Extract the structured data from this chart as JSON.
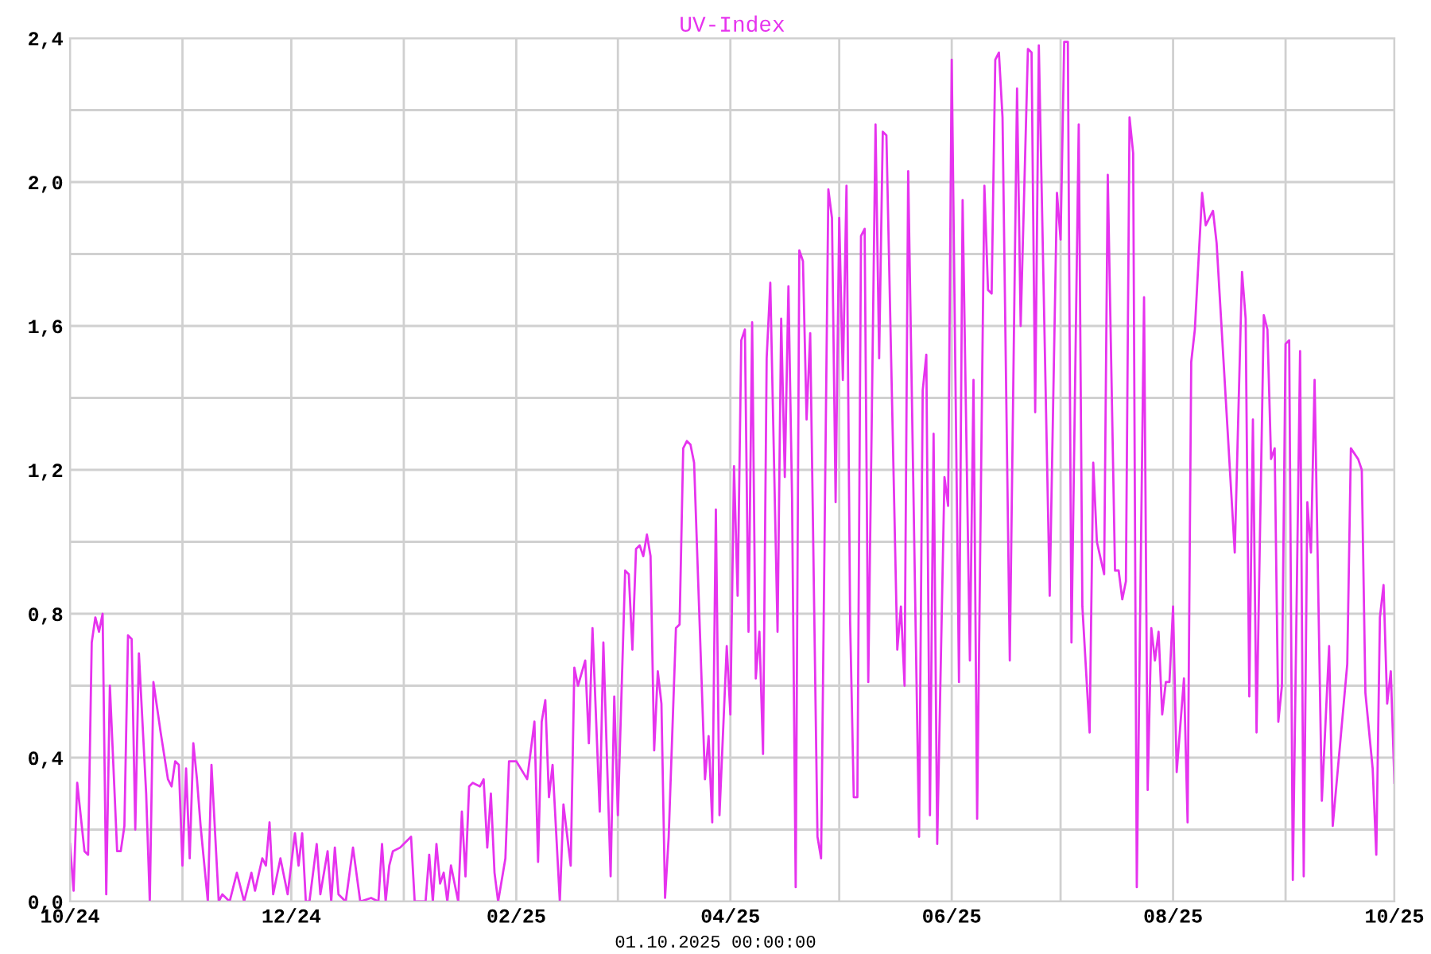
{
  "chart_data": {
    "type": "line",
    "title": "UV-Index",
    "annotations": [
      "01.10.2025 00:00:00"
    ],
    "xlim": [
      "2024-10-01",
      "2025-10-01"
    ],
    "xticks": [
      {
        "value": "2024-10-01",
        "label": "10/24"
      },
      {
        "value": "2024-11-01",
        "label": null
      },
      {
        "value": "2024-12-01",
        "label": "12/24"
      },
      {
        "value": "2025-01-01",
        "label": null
      },
      {
        "value": "2025-02-01",
        "label": "02/25"
      },
      {
        "value": "2025-03-01",
        "label": null
      },
      {
        "value": "2025-04-01",
        "label": "04/25"
      },
      {
        "value": "2025-05-01",
        "label": null
      },
      {
        "value": "2025-06-01",
        "label": "06/25"
      },
      {
        "value": "2025-07-01",
        "label": null
      },
      {
        "value": "2025-08-01",
        "label": "08/25"
      },
      {
        "value": "2025-09-01",
        "label": null
      },
      {
        "value": "2025-10-01",
        "label": "10/25"
      }
    ],
    "ylim": [
      0,
      2.4
    ],
    "yticks": [
      {
        "value": 0,
        "label": "0,0"
      },
      {
        "value": 0.2,
        "label": null
      },
      {
        "value": 0.4,
        "label": "0,4"
      },
      {
        "value": 0.6,
        "label": null
      },
      {
        "value": 0.8,
        "label": "0,8"
      },
      {
        "value": 1.0,
        "label": null
      },
      {
        "value": 1.2,
        "label": "1,2"
      },
      {
        "value": 1.4,
        "label": null
      },
      {
        "value": 1.6,
        "label": "1,6"
      },
      {
        "value": 1.8,
        "label": null
      },
      {
        "value": 2.0,
        "label": "2,0"
      },
      {
        "value": 2.2,
        "label": null
      },
      {
        "value": 2.4,
        "label": "2,4"
      }
    ],
    "grid": true,
    "marker": "none",
    "line_style": "solid",
    "series": [
      {
        "color": "#e633ee",
        "x": [
          "2024-10-01",
          "2024-10-02",
          "2024-10-03",
          "2024-10-05",
          "2024-10-06",
          "2024-10-07",
          "2024-10-08",
          "2024-10-09",
          "2024-10-10",
          "2024-10-11",
          "2024-10-12",
          "2024-10-14",
          "2024-10-15",
          "2024-10-16",
          "2024-10-17",
          "2024-10-18",
          "2024-10-19",
          "2024-10-20",
          "2024-10-22",
          "2024-10-23",
          "2024-10-24",
          "2024-10-26",
          "2024-10-28",
          "2024-10-29",
          "2024-10-30",
          "2024-10-31",
          "2024-11-01",
          "2024-11-02",
          "2024-11-03",
          "2024-11-04",
          "2024-11-05",
          "2024-11-06",
          "2024-11-08",
          "2024-11-09",
          "2024-11-11",
          "2024-11-12",
          "2024-11-14",
          "2024-11-16",
          "2024-11-18",
          "2024-11-20",
          "2024-11-21",
          "2024-11-23",
          "2024-11-24",
          "2024-11-25",
          "2024-11-26",
          "2024-11-28",
          "2024-11-30",
          "2024-12-02",
          "2024-12-03",
          "2024-12-04",
          "2024-12-05",
          "2024-12-06",
          "2024-12-08",
          "2024-12-09",
          "2024-12-11",
          "2024-12-12",
          "2024-12-13",
          "2024-12-14",
          "2024-12-16",
          "2024-12-18",
          "2024-12-20",
          "2024-12-23",
          "2024-12-25",
          "2024-12-26",
          "2024-12-27",
          "2024-12-28",
          "2024-12-29",
          "2024-12-31",
          "2025-01-01",
          "2025-01-03",
          "2025-01-04",
          "2025-01-07",
          "2025-01-08",
          "2025-01-09",
          "2025-01-10",
          "2025-01-11",
          "2025-01-12",
          "2025-01-13",
          "2025-01-14",
          "2025-01-16",
          "2025-01-17",
          "2025-01-18",
          "2025-01-19",
          "2025-01-20",
          "2025-01-22",
          "2025-01-23",
          "2025-01-24",
          "2025-01-25",
          "2025-01-26",
          "2025-01-27",
          "2025-01-29",
          "2025-01-30",
          "2025-02-01",
          "2025-02-04",
          "2025-02-06",
          "2025-02-07",
          "2025-02-08",
          "2025-02-09",
          "2025-02-10",
          "2025-02-11",
          "2025-02-13",
          "2025-02-14",
          "2025-02-16",
          "2025-02-17",
          "2025-02-18",
          "2025-02-20",
          "2025-02-21",
          "2025-02-22",
          "2025-02-24",
          "2025-02-25",
          "2025-02-27",
          "2025-02-28",
          "2025-03-01",
          "2025-03-03",
          "2025-03-04",
          "2025-03-05",
          "2025-03-06",
          "2025-03-07",
          "2025-03-08",
          "2025-03-09",
          "2025-03-10",
          "2025-03-11",
          "2025-03-12",
          "2025-03-13",
          "2025-03-14",
          "2025-03-15",
          "2025-03-17",
          "2025-03-18",
          "2025-03-19",
          "2025-03-20",
          "2025-03-21",
          "2025-03-22",
          "2025-03-25",
          "2025-03-26",
          "2025-03-27",
          "2025-03-28",
          "2025-03-29",
          "2025-03-31",
          "2025-04-01",
          "2025-04-02",
          "2025-04-03",
          "2025-04-04",
          "2025-04-05",
          "2025-04-06",
          "2025-04-07",
          "2025-04-08",
          "2025-04-09",
          "2025-04-10",
          "2025-04-11",
          "2025-04-12",
          "2025-04-14",
          "2025-04-15",
          "2025-04-16",
          "2025-04-17",
          "2025-04-18",
          "2025-04-19",
          "2025-04-20",
          "2025-04-21",
          "2025-04-22",
          "2025-04-23",
          "2025-04-25",
          "2025-04-26",
          "2025-04-28",
          "2025-04-29",
          "2025-04-30",
          "2025-05-01",
          "2025-05-02",
          "2025-05-03",
          "2025-05-04",
          "2025-05-05",
          "2025-05-06",
          "2025-05-07",
          "2025-05-08",
          "2025-05-09",
          "2025-05-10",
          "2025-05-11",
          "2025-05-12",
          "2025-05-13",
          "2025-05-14",
          "2025-05-17",
          "2025-05-18",
          "2025-05-19",
          "2025-05-20",
          "2025-05-23",
          "2025-05-24",
          "2025-05-25",
          "2025-05-26",
          "2025-05-27",
          "2025-05-28",
          "2025-05-30",
          "2025-05-31",
          "2025-06-01",
          "2025-06-03",
          "2025-06-04",
          "2025-06-06",
          "2025-06-07",
          "2025-06-08",
          "2025-06-10",
          "2025-06-11",
          "2025-06-12",
          "2025-06-13",
          "2025-06-14",
          "2025-06-15",
          "2025-06-17",
          "2025-06-19",
          "2025-06-20",
          "2025-06-22",
          "2025-06-23",
          "2025-06-24",
          "2025-06-25",
          "2025-06-28",
          "2025-06-30",
          "2025-07-01",
          "2025-07-02",
          "2025-07-03",
          "2025-07-04",
          "2025-07-06",
          "2025-07-07",
          "2025-07-09",
          "2025-07-10",
          "2025-07-11",
          "2025-07-13",
          "2025-07-14",
          "2025-07-16",
          "2025-07-17",
          "2025-07-18",
          "2025-07-19",
          "2025-07-20",
          "2025-07-21",
          "2025-07-22",
          "2025-07-24",
          "2025-07-25",
          "2025-07-26",
          "2025-07-27",
          "2025-07-28",
          "2025-07-29",
          "2025-07-30",
          "2025-07-31",
          "2025-08-01",
          "2025-08-02",
          "2025-08-04",
          "2025-08-05",
          "2025-08-06",
          "2025-08-07",
          "2025-08-09",
          "2025-08-10",
          "2025-08-12",
          "2025-08-13",
          "2025-08-18",
          "2025-08-20",
          "2025-08-21",
          "2025-08-22",
          "2025-08-23",
          "2025-08-24",
          "2025-08-26",
          "2025-08-27",
          "2025-08-28",
          "2025-08-29",
          "2025-08-30",
          "2025-08-31",
          "2025-09-01",
          "2025-09-02",
          "2025-09-03",
          "2025-09-05",
          "2025-09-06",
          "2025-09-07",
          "2025-09-08",
          "2025-09-09",
          "2025-09-11",
          "2025-09-13",
          "2025-09-14",
          "2025-09-18",
          "2025-09-19",
          "2025-09-21",
          "2025-09-22",
          "2025-09-23",
          "2025-09-25",
          "2025-09-26",
          "2025-09-27",
          "2025-09-28",
          "2025-09-29",
          "2025-09-30",
          "2025-10-01"
        ],
        "values": [
          0.16,
          0.03,
          0.33,
          0.14,
          0.13,
          0.72,
          0.79,
          0.75,
          0.8,
          0.02,
          0.6,
          0.14,
          0.14,
          0.21,
          0.74,
          0.73,
          0.2,
          0.69,
          0.3,
          0.0,
          0.61,
          0.47,
          0.34,
          0.32,
          0.39,
          0.38,
          0.1,
          0.37,
          0.12,
          0.44,
          0.34,
          0.21,
          0.0,
          0.38,
          0.0,
          0.02,
          0.0,
          0.08,
          0.0,
          0.08,
          0.03,
          0.12,
          0.1,
          0.22,
          0.02,
          0.12,
          0.02,
          0.19,
          0.1,
          0.19,
          0.0,
          0.0,
          0.16,
          0.02,
          0.14,
          0.0,
          0.15,
          0.02,
          0.0,
          0.15,
          0.0,
          0.01,
          0.0,
          0.16,
          0.0,
          0.1,
          0.14,
          0.15,
          0.16,
          0.18,
          0.0,
          0.0,
          0.13,
          0.0,
          0.16,
          0.05,
          0.08,
          0.0,
          0.1,
          0.0,
          0.25,
          0.07,
          0.32,
          0.33,
          0.32,
          0.34,
          0.15,
          0.3,
          0.08,
          0.0,
          0.12,
          0.39,
          0.39,
          0.34,
          0.5,
          0.11,
          0.5,
          0.56,
          0.29,
          0.38,
          0.0,
          0.27,
          0.1,
          0.65,
          0.6,
          0.67,
          0.44,
          0.76,
          0.25,
          0.72,
          0.07,
          0.57,
          0.24,
          0.92,
          0.91,
          0.7,
          0.98,
          0.99,
          0.96,
          1.02,
          0.96,
          0.42,
          0.64,
          0.55,
          0.01,
          0.18,
          0.76,
          0.77,
          1.26,
          1.28,
          1.27,
          1.22,
          0.34,
          0.46,
          0.22,
          1.09,
          0.24,
          0.71,
          0.52,
          1.21,
          0.85,
          1.56,
          1.59,
          0.75,
          1.61,
          0.62,
          0.75,
          0.41,
          1.51,
          1.72,
          0.75,
          1.62,
          1.18,
          1.71,
          1.12,
          0.04,
          1.81,
          1.78,
          1.34,
          1.58,
          0.18,
          0.12,
          1.98,
          1.9,
          1.11,
          1.9,
          1.45,
          1.99,
          0.78,
          0.29,
          0.29,
          1.85,
          1.87,
          0.61,
          1.37,
          2.16,
          1.51,
          2.14,
          2.13,
          0.7,
          0.82,
          0.6,
          2.03,
          0.18,
          1.42,
          1.52,
          0.24,
          1.3,
          0.16,
          1.18,
          1.1,
          2.34,
          0.61,
          1.95,
          0.67,
          1.45,
          0.23,
          1.99,
          1.7,
          1.69,
          2.34,
          2.36,
          2.18,
          0.67,
          2.26,
          1.6,
          2.37,
          2.36,
          1.36,
          2.38,
          0.85,
          1.97,
          1.84,
          2.39,
          2.39,
          0.72,
          2.16,
          0.82,
          0.47,
          1.22,
          1.0,
          0.91,
          2.02,
          0.92,
          0.92,
          0.84,
          0.89,
          2.18,
          2.08,
          0.04,
          1.68,
          0.31,
          0.76,
          0.67,
          0.75,
          0.52,
          0.61,
          0.61,
          0.82,
          0.36,
          0.62,
          0.22,
          1.5,
          1.59,
          1.97,
          1.88,
          1.92,
          1.83,
          0.97,
          1.75,
          1.62,
          0.57,
          1.34,
          0.47,
          1.63,
          1.59,
          1.23,
          1.26,
          0.5,
          0.6,
          1.55,
          1.56,
          0.06,
          1.53,
          0.07,
          1.11,
          0.97,
          1.45,
          0.28,
          0.71,
          0.21,
          0.66,
          1.26,
          1.23,
          1.2,
          0.58,
          0.37,
          0.13,
          0.79,
          0.88,
          0.55,
          0.64,
          0.33
        ]
      }
    ]
  }
}
